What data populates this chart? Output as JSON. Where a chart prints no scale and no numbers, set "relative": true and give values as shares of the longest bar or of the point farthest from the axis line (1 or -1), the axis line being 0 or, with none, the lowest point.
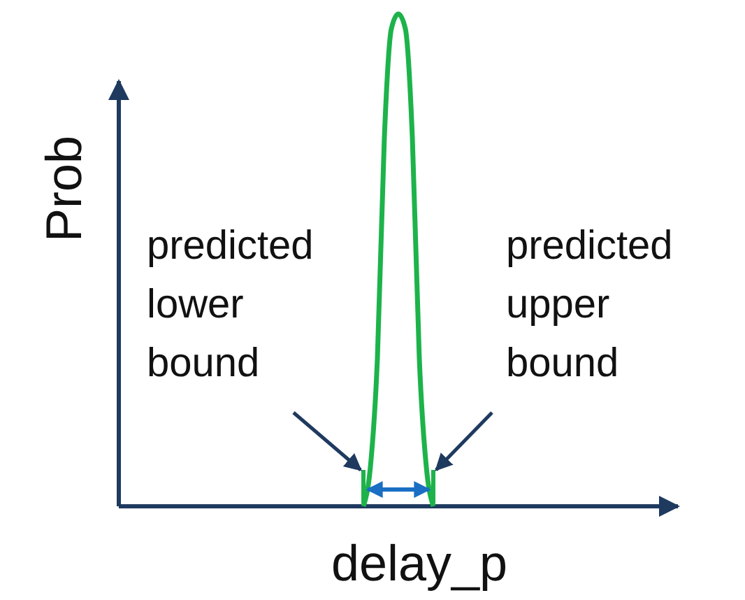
{
  "chart_data": {
    "type": "line",
    "relative": true,
    "xlabel": "delay_p",
    "ylabel": "Prob",
    "line_style": "solid",
    "categories": [
      null,
      null,
      null,
      null,
      null,
      null,
      null,
      null,
      null,
      null,
      null,
      null,
      null,
      null,
      null,
      null,
      null,
      null,
      null,
      null,
      null,
      null,
      null,
      null,
      null,
      null,
      null,
      null,
      null,
      null,
      null,
      null,
      null,
      null,
      null,
      null,
      null,
      null,
      null,
      null,
      null,
      null,
      null,
      null,
      null,
      null,
      null,
      null,
      null,
      null,
      null,
      null,
      null,
      null,
      null,
      null,
      null,
      null,
      null,
      null,
      null,
      null,
      null,
      null,
      null,
      null,
      null,
      null,
      null,
      null,
      null,
      null,
      null,
      null,
      null,
      null,
      null,
      null,
      null,
      null,
      null
    ],
    "series": [
      {
        "color": "#1db34a",
        "values": [
          null,
          null,
          null,
          null,
          null,
          null,
          null,
          null,
          null,
          null,
          null,
          null,
          null,
          null,
          null,
          null,
          null,
          null,
          null,
          null,
          null,
          null,
          null,
          null,
          null,
          null,
          null,
          null,
          null,
          null,
          null,
          null,
          null,
          null,
          null,
          0,
          0.08,
          0.3,
          0.75,
          0.97,
          1,
          0.97,
          0.75,
          0.3,
          0.08,
          0,
          null,
          null,
          null,
          null,
          null,
          null,
          null,
          null,
          null,
          null,
          null,
          null,
          null,
          null,
          null,
          null,
          null,
          null,
          null,
          null,
          null,
          null,
          null,
          null,
          null,
          null,
          null,
          null,
          null,
          null,
          null,
          null,
          null,
          null,
          null
        ]
      }
    ],
    "annotations": [
      "predicted lower bound",
      "predicted upper bound"
    ]
  }
}
